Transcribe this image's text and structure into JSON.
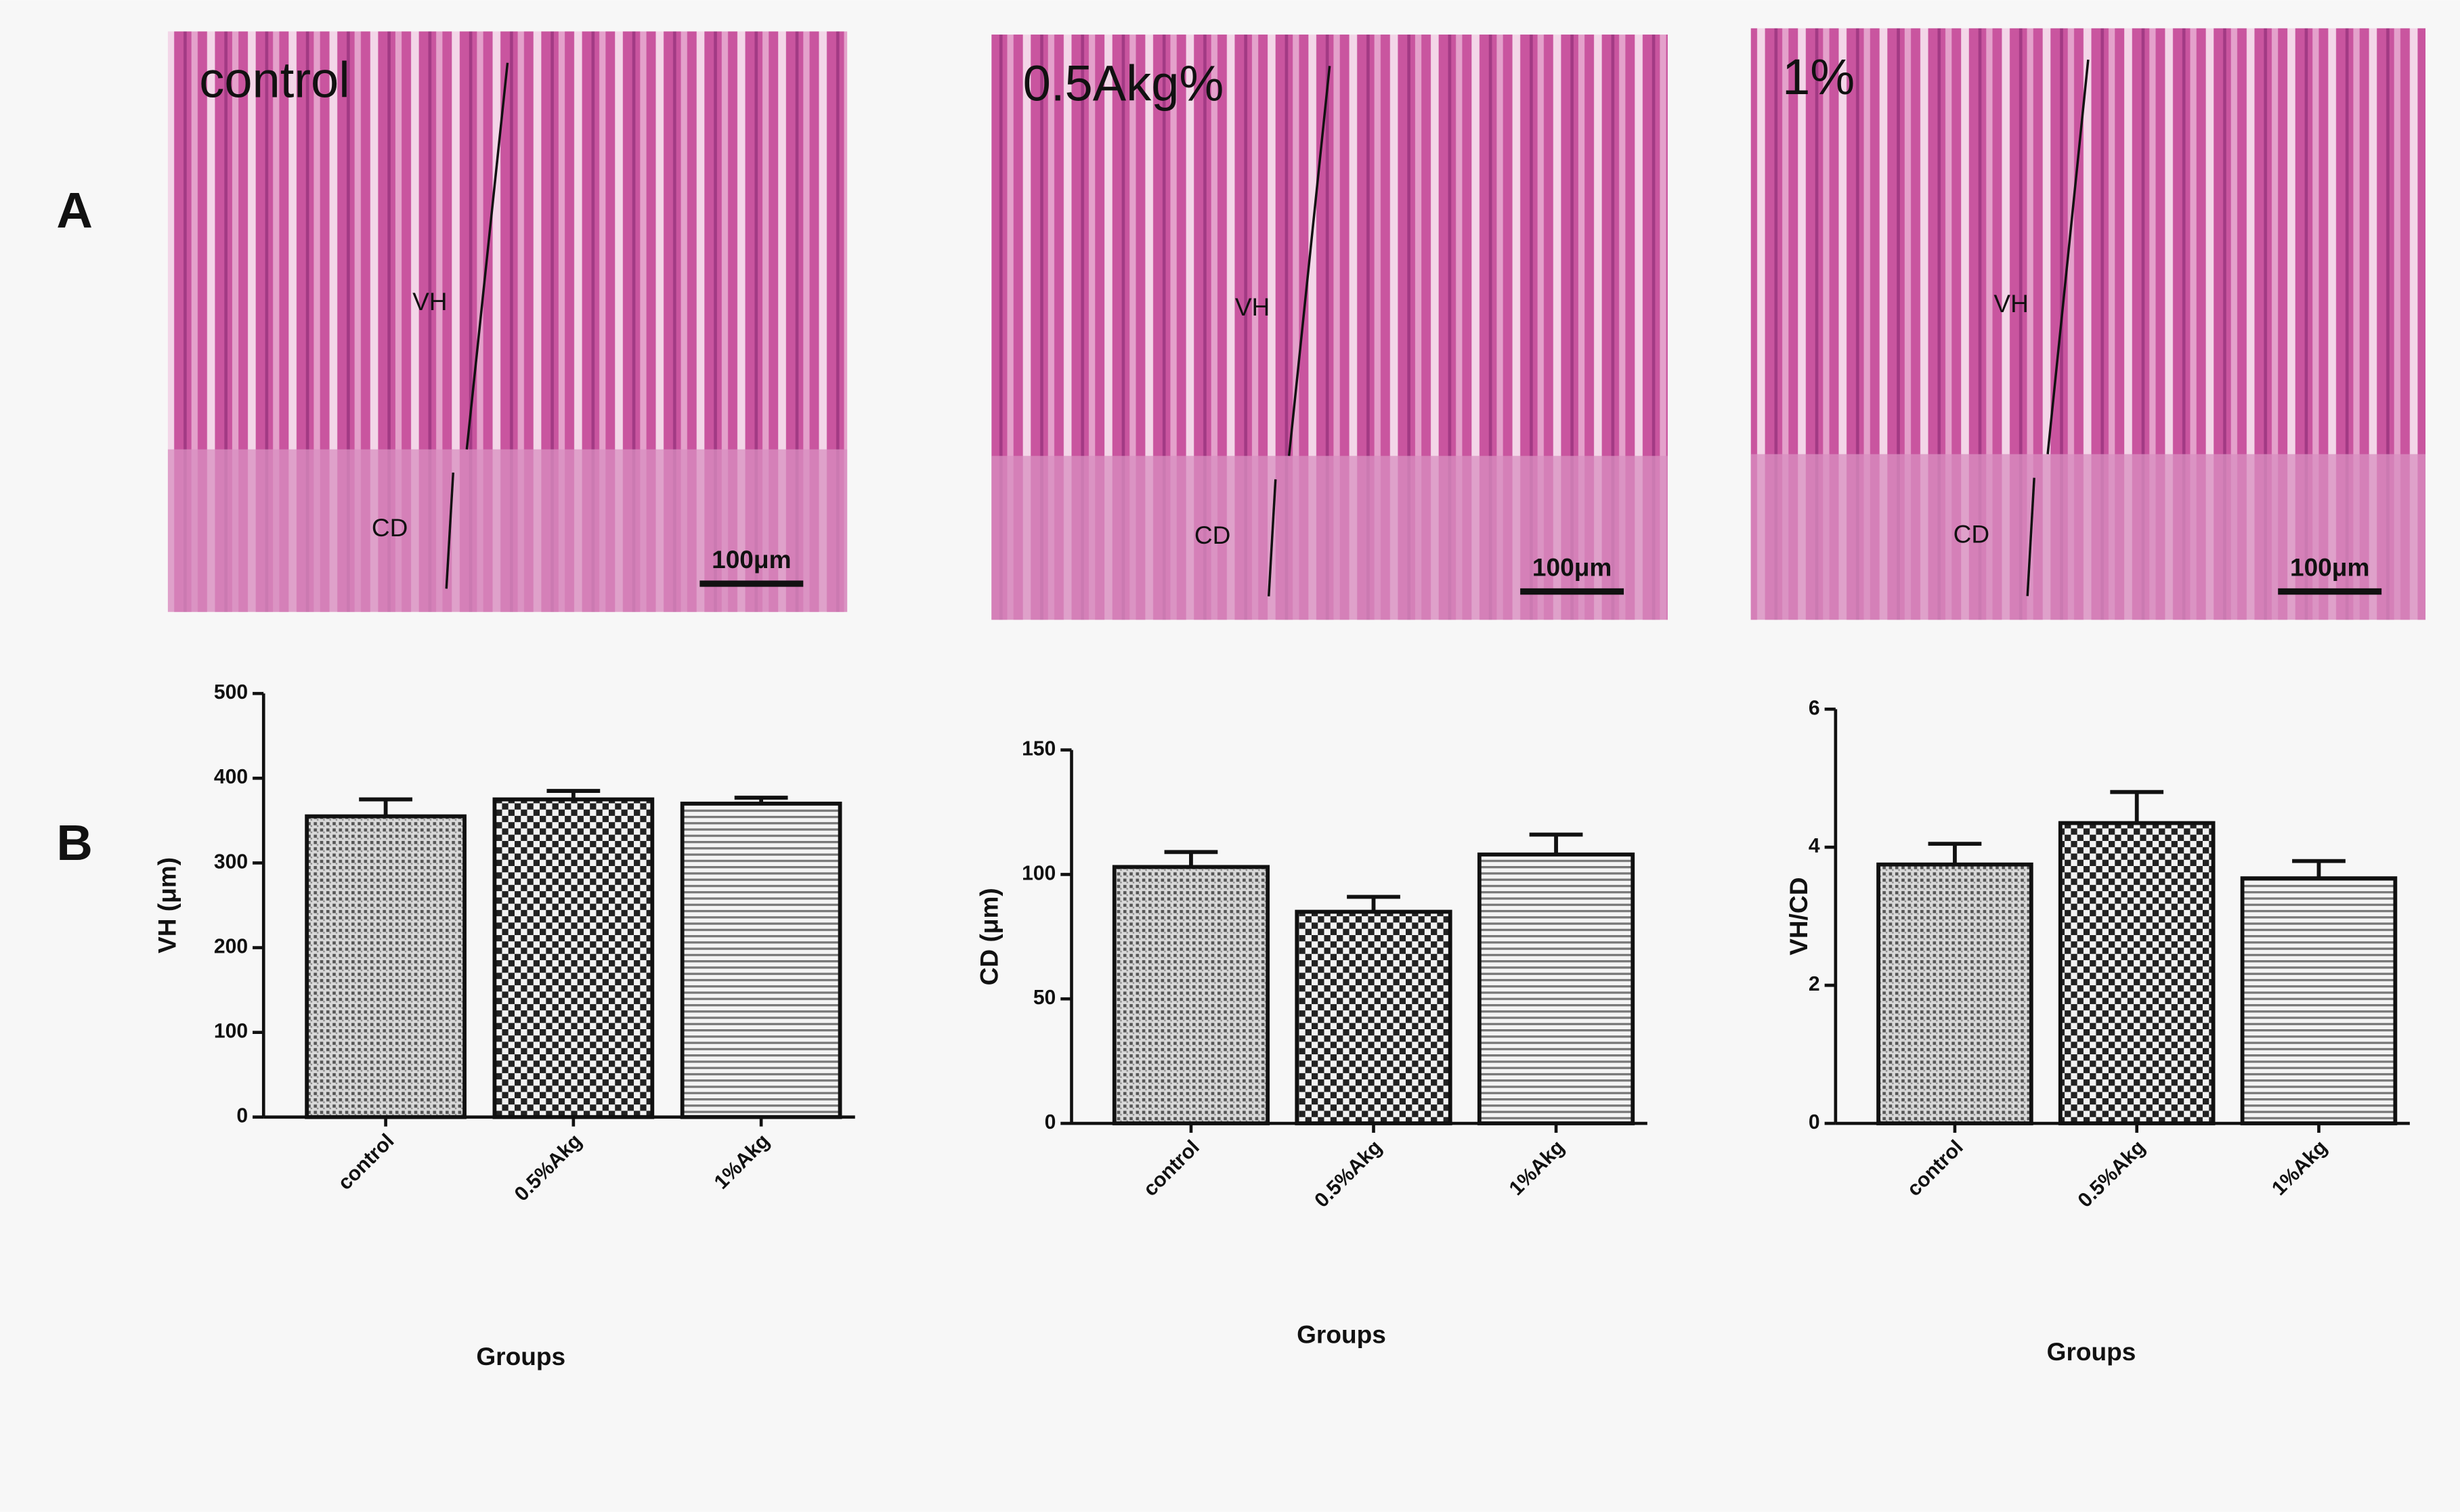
{
  "panel_labels": [
    "A",
    "B"
  ],
  "micrographs": [
    {
      "label": "control",
      "vh": "VH",
      "cd": "CD",
      "scale": "100μm"
    },
    {
      "label": "0.5Akg%",
      "vh": "VH",
      "cd": "CD",
      "scale": "100μm"
    },
    {
      "label": "1%",
      "vh": "VH",
      "cd": "CD",
      "scale": "100μm"
    }
  ],
  "chart_data": [
    {
      "type": "bar",
      "y_label": "VH (μm)",
      "x_label": "Groups",
      "categories": [
        "control",
        "0.5%Akg",
        "1%Akg"
      ],
      "values": [
        355,
        375,
        370
      ],
      "errors": [
        20,
        10,
        7
      ],
      "patterns": [
        "dense",
        "checker",
        "lines"
      ],
      "ylim": [
        0,
        500
      ],
      "yticks": [
        0,
        100,
        200,
        300,
        400,
        500
      ]
    },
    {
      "type": "bar",
      "y_label": "CD (μm)",
      "x_label": "Groups",
      "categories": [
        "control",
        "0.5%Akg",
        "1%Akg"
      ],
      "values": [
        103,
        85,
        108
      ],
      "errors": [
        6,
        6,
        8
      ],
      "patterns": [
        "dense",
        "checker",
        "lines"
      ],
      "ylim": [
        0,
        150
      ],
      "yticks": [
        0,
        50,
        100,
        150
      ]
    },
    {
      "type": "bar",
      "y_label": "VH/CD",
      "x_label": "Groups",
      "categories": [
        "control",
        "0.5%Akg",
        "1%Akg"
      ],
      "values": [
        3.75,
        4.35,
        3.55
      ],
      "errors": [
        0.3,
        0.45,
        0.25
      ],
      "patterns": [
        "dense",
        "checker",
        "lines"
      ],
      "ylim": [
        0,
        6
      ],
      "yticks": [
        0,
        2,
        4,
        6
      ]
    }
  ]
}
